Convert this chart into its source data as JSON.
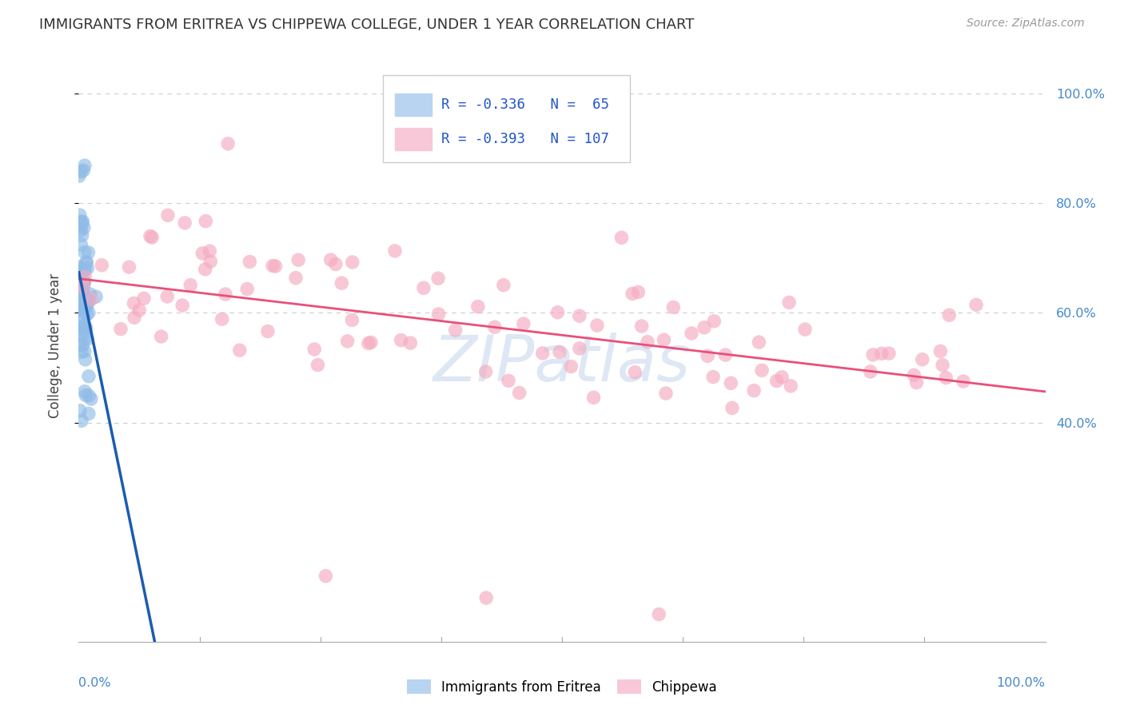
{
  "title": "IMMIGRANTS FROM ERITREA VS CHIPPEWA COLLEGE, UNDER 1 YEAR CORRELATION CHART",
  "source": "Source: ZipAtlas.com",
  "ylabel": "College, Under 1 year",
  "R_eritrea": -0.336,
  "N_eritrea": 65,
  "R_chippewa": -0.393,
  "N_chippewa": 107,
  "color_eritrea": "#90bce8",
  "color_chippewa": "#f5aac0",
  "color_eritrea_line": "#1a5cb0",
  "color_chippewa_line": "#e8507a",
  "color_eritrea_legend_box": "#b8d4f0",
  "color_chippewa_legend_box": "#f8c8d8",
  "color_right_ticks": "#4488cc",
  "color_bottom_ticks": "#4488cc",
  "background_color": "#ffffff",
  "grid_color": "#cccccc",
  "watermark": "ZIPatlas",
  "watermark_color": "#c8d8ee",
  "title_fontsize": 13,
  "axis_label_fontsize": 12,
  "tick_fontsize": 11.5,
  "seed": 12345
}
